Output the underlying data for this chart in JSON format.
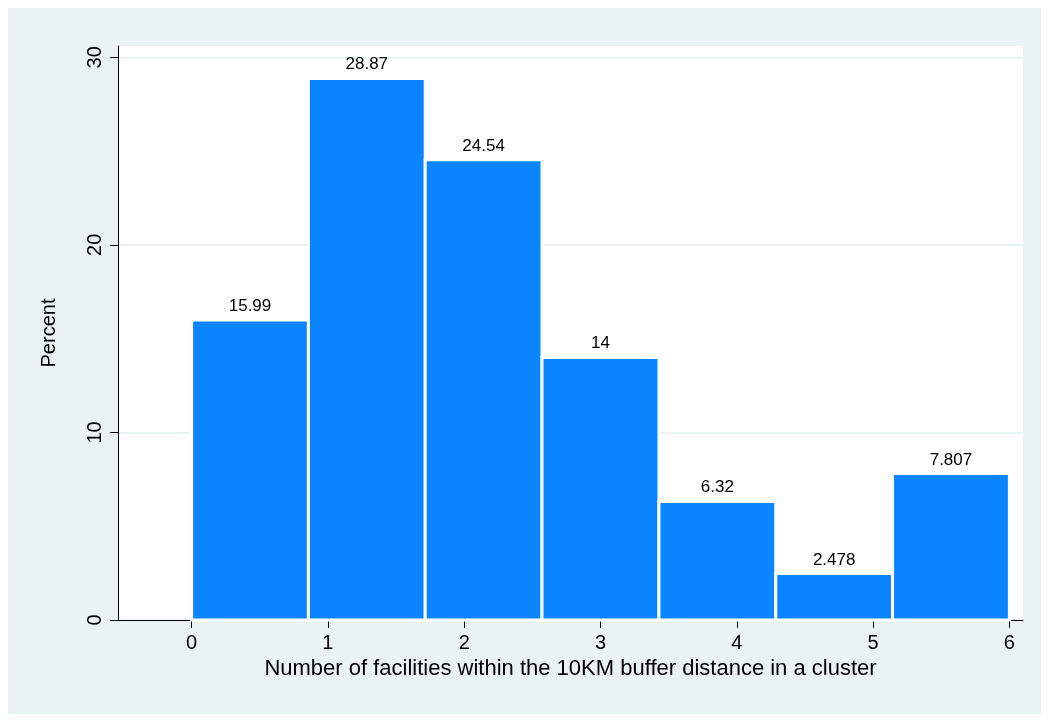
{
  "chart_data": {
    "type": "histogram",
    "xlabel": "Number of facilities within the 10KM buffer distance in a cluster",
    "ylabel": "Percent",
    "bins": [
      0,
      0.857,
      1.714,
      2.571,
      3.429,
      4.286,
      5.143,
      6
    ],
    "values": [
      15.99,
      28.87,
      24.54,
      14,
      6.32,
      2.478,
      7.807
    ],
    "color": "#0a84ff",
    "data_labels": true,
    "grid": "y",
    "xlim": [
      -0.54,
      6.1
    ],
    "xticks": [
      0,
      1,
      2,
      3,
      4,
      5,
      6
    ],
    "ylim": [
      0,
      30.6
    ],
    "yticks": [
      0,
      10,
      20,
      30
    ]
  }
}
